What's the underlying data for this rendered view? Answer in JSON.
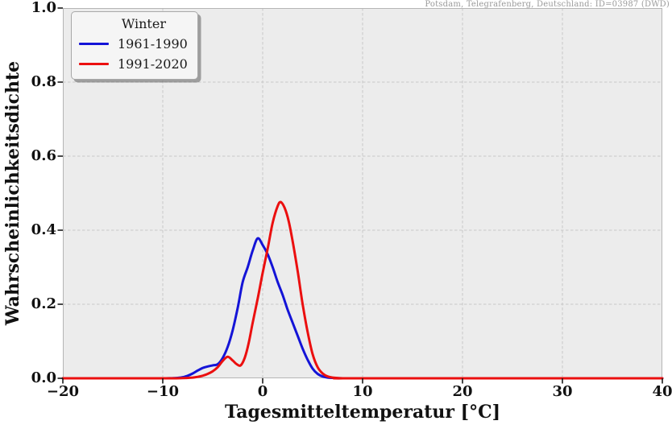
{
  "attribution": "Potsdam, Telegrafenberg, Deutschland: ID=03987 (DWD)",
  "axes": {
    "xlabel": "Tagesmitteltemperatur [°C]",
    "ylabel": "Wahrscheinlichkeitsdichte"
  },
  "legend": {
    "title": "Winter",
    "entries": [
      {
        "label": "1961-1990"
      },
      {
        "label": "1991-2020"
      }
    ]
  },
  "chart_data": {
    "type": "line",
    "subtype": "probability-density",
    "title": "",
    "annotation": "Potsdam, Telegrafenberg, Deutschland: ID=03987 (DWD)",
    "xlabel": "Tagesmitteltemperatur [°C]",
    "ylabel": "Wahrscheinlichkeitsdichte",
    "xlim": [
      -20,
      40
    ],
    "ylim": [
      0,
      1
    ],
    "xticks": [
      {
        "value": -20,
        "label": "−20"
      },
      {
        "value": -10,
        "label": "−10"
      },
      {
        "value": 0,
        "label": "0"
      },
      {
        "value": 10,
        "label": "10"
      },
      {
        "value": 20,
        "label": "20"
      },
      {
        "value": 30,
        "label": "30"
      },
      {
        "value": 40,
        "label": "40"
      }
    ],
    "yticks": [
      {
        "value": 0.0,
        "label": "0.0"
      },
      {
        "value": 0.2,
        "label": "0.2"
      },
      {
        "value": 0.4,
        "label": "0.4"
      },
      {
        "value": 0.6,
        "label": "0.6"
      },
      {
        "value": 0.8,
        "label": "0.8"
      },
      {
        "value": 1.0,
        "label": "1.0"
      }
    ],
    "grid": {
      "style": "dashed",
      "color": "#c8c8c8"
    },
    "plot_bg": "#ececec",
    "border_color": "#b5b5b5",
    "legend_title": "Winter",
    "legend_position": "upper-left",
    "series": [
      {
        "name": "1961-1990",
        "color": "#1414d7",
        "points": [
          [
            -20,
            0
          ],
          [
            -12,
            0
          ],
          [
            -10,
            0
          ],
          [
            -9,
            0.0005
          ],
          [
            -8.5,
            0.001
          ],
          [
            -8,
            0.003
          ],
          [
            -7.5,
            0.007
          ],
          [
            -7,
            0.013
          ],
          [
            -6.5,
            0.021
          ],
          [
            -6,
            0.028
          ],
          [
            -5.5,
            0.032
          ],
          [
            -5,
            0.035
          ],
          [
            -4.5,
            0.038
          ],
          [
            -4,
            0.055
          ],
          [
            -3.5,
            0.085
          ],
          [
            -3,
            0.13
          ],
          [
            -2.5,
            0.19
          ],
          [
            -2,
            0.26
          ],
          [
            -1.5,
            0.3
          ],
          [
            -1,
            0.345
          ],
          [
            -0.5,
            0.378
          ],
          [
            0,
            0.36
          ],
          [
            0.5,
            0.335
          ],
          [
            1,
            0.3
          ],
          [
            1.5,
            0.26
          ],
          [
            2,
            0.225
          ],
          [
            2.5,
            0.185
          ],
          [
            3,
            0.15
          ],
          [
            3.5,
            0.115
          ],
          [
            4,
            0.08
          ],
          [
            4.5,
            0.05
          ],
          [
            5,
            0.026
          ],
          [
            5.5,
            0.012
          ],
          [
            6,
            0.005
          ],
          [
            6.5,
            0.002
          ],
          [
            7,
            0.001
          ],
          [
            8,
            0
          ],
          [
            10,
            0
          ],
          [
            40,
            0
          ]
        ]
      },
      {
        "name": "1991-2020",
        "color": "#eb0f0f",
        "points": [
          [
            -20,
            0
          ],
          [
            -10,
            0
          ],
          [
            -8,
            0.0005
          ],
          [
            -7,
            0.002
          ],
          [
            -6.5,
            0.004
          ],
          [
            -6,
            0.007
          ],
          [
            -5.5,
            0.012
          ],
          [
            -5,
            0.019
          ],
          [
            -4.5,
            0.03
          ],
          [
            -4,
            0.047
          ],
          [
            -3.5,
            0.058
          ],
          [
            -3,
            0.048
          ],
          [
            -2.6,
            0.038
          ],
          [
            -2.2,
            0.035
          ],
          [
            -1.8,
            0.055
          ],
          [
            -1.4,
            0.095
          ],
          [
            -1,
            0.15
          ],
          [
            -0.5,
            0.215
          ],
          [
            0,
            0.285
          ],
          [
            0.5,
            0.35
          ],
          [
            1,
            0.42
          ],
          [
            1.5,
            0.465
          ],
          [
            1.8,
            0.476
          ],
          [
            2.2,
            0.46
          ],
          [
            2.6,
            0.425
          ],
          [
            3,
            0.37
          ],
          [
            3.5,
            0.29
          ],
          [
            4,
            0.2
          ],
          [
            4.5,
            0.125
          ],
          [
            5,
            0.065
          ],
          [
            5.5,
            0.03
          ],
          [
            6,
            0.013
          ],
          [
            6.5,
            0.005
          ],
          [
            7,
            0.002
          ],
          [
            8,
            0
          ],
          [
            10,
            0
          ],
          [
            40,
            0
          ]
        ]
      }
    ]
  }
}
